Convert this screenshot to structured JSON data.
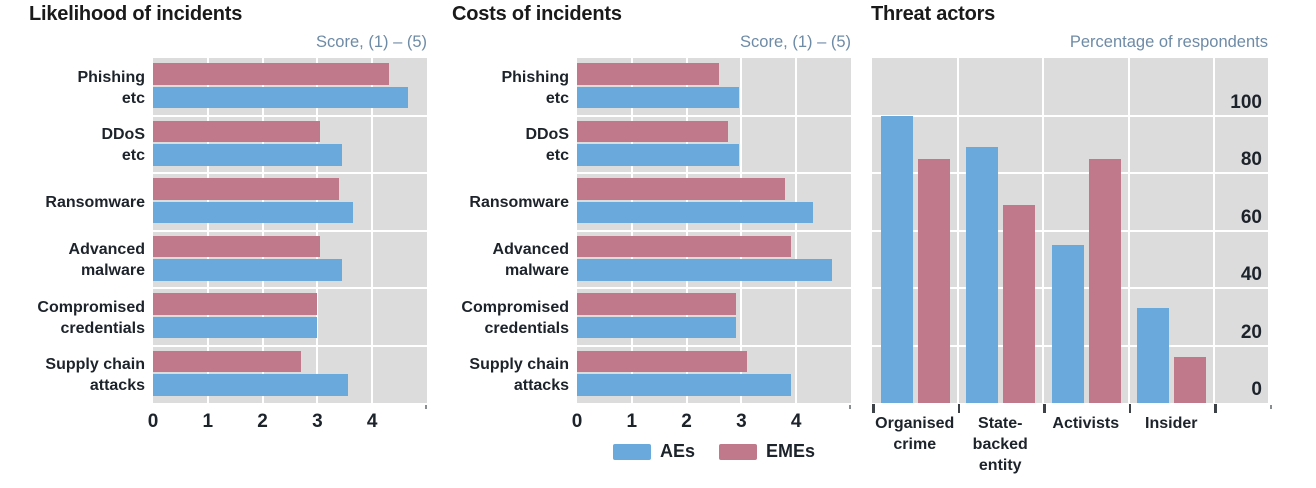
{
  "colors": {
    "aes": "#69a9dc",
    "emes": "#c0798b",
    "plot_bg": "#dcdcdc",
    "gridline": "#ffffff",
    "title_text": "#1a1a1a",
    "subtitle_text": "#6e8ba6",
    "label_text": "#1d232b"
  },
  "legend": {
    "items": [
      {
        "label": "AEs",
        "color": "#69a9dc"
      },
      {
        "label": "EMEs",
        "color": "#c0798b"
      }
    ]
  },
  "chart_data": [
    {
      "type": "bar",
      "orientation": "horizontal",
      "title": "Likelihood of incidents",
      "subtitle": "Score, (1) – (5)",
      "categories": [
        "Phishing etc",
        "DDoS etc",
        "Ransomware",
        "Advanced malware",
        "Compromised credentials",
        "Supply chain attacks"
      ],
      "category_lines": [
        [
          "Phishing",
          "etc"
        ],
        [
          "DDoS",
          "etc"
        ],
        [
          "Ransomware"
        ],
        [
          "Advanced",
          "malware"
        ],
        [
          "Compromised",
          "credentials"
        ],
        [
          "Supply chain",
          "attacks"
        ]
      ],
      "series": [
        {
          "name": "AEs",
          "values": [
            4.65,
            3.45,
            3.65,
            3.45,
            3.0,
            3.55
          ]
        },
        {
          "name": "EMEs",
          "values": [
            4.3,
            3.05,
            3.4,
            3.05,
            3.0,
            2.7
          ]
        }
      ],
      "xlim": [
        0,
        5
      ],
      "xticks": [
        0,
        1,
        2,
        3,
        4
      ],
      "grid": true,
      "bar_stack_order": "EMEs on top row, AEs below"
    },
    {
      "type": "bar",
      "orientation": "horizontal",
      "title": "Costs of incidents",
      "subtitle": "Score, (1) – (5)",
      "categories": [
        "Phishing etc",
        "DDoS etc",
        "Ransomware",
        "Advanced malware",
        "Compromised credentials",
        "Supply chain attacks"
      ],
      "category_lines": [
        [
          "Phishing",
          "etc"
        ],
        [
          "DDoS",
          "etc"
        ],
        [
          "Ransomware"
        ],
        [
          "Advanced",
          "malware"
        ],
        [
          "Compromised",
          "credentials"
        ],
        [
          "Supply chain",
          "attacks"
        ]
      ],
      "series": [
        {
          "name": "AEs",
          "values": [
            2.95,
            2.95,
            4.3,
            4.65,
            2.9,
            3.9
          ]
        },
        {
          "name": "EMEs",
          "values": [
            2.6,
            2.75,
            3.8,
            3.9,
            2.9,
            3.1
          ]
        }
      ],
      "xlim": [
        0,
        5
      ],
      "xticks": [
        0,
        1,
        2,
        3,
        4
      ],
      "grid": true,
      "legend_position": "below"
    },
    {
      "type": "bar",
      "orientation": "vertical",
      "title": "Threat actors",
      "subtitle": "Percentage of respondents",
      "categories": [
        "Organised crime",
        "State-backed entity",
        "Activists",
        "Insider"
      ],
      "category_lines": [
        [
          "Organised",
          "crime"
        ],
        [
          "State-",
          "backed",
          "entity"
        ],
        [
          "Activists"
        ],
        [
          "Insider"
        ]
      ],
      "series": [
        {
          "name": "AEs",
          "values": [
            100,
            89,
            55,
            33
          ]
        },
        {
          "name": "EMEs",
          "values": [
            85,
            69,
            85,
            16
          ]
        }
      ],
      "ylim": [
        0,
        120
      ],
      "yticks": [
        0,
        20,
        40,
        60,
        80,
        100
      ],
      "ytick_side": "right-inside",
      "grid": true
    }
  ]
}
